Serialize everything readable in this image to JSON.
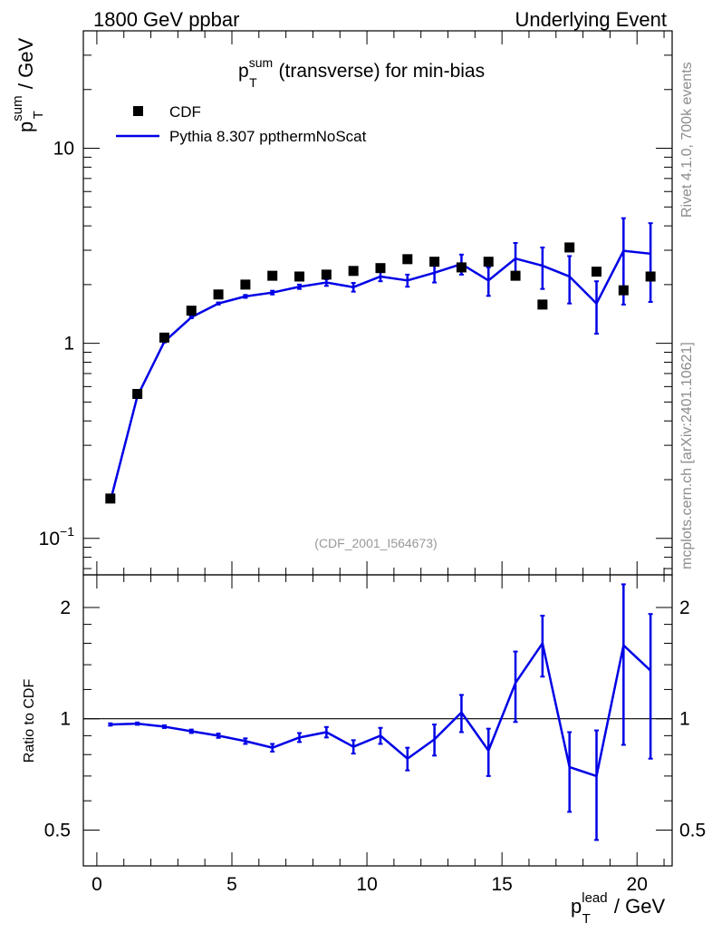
{
  "header": {
    "left": "1800 GeV ppbar",
    "right": "Underlying Event"
  },
  "side_labels": {
    "rivet": "Rivet 4.1.0,  700k events",
    "mcplots": "mcplots.cern.ch [arXiv:2401.10621]"
  },
  "main_plot": {
    "title_main": "p",
    "title_sup": "sum",
    "title_sub": "T",
    "title_rest": " (transverse) for min-bias",
    "ylabel_main": "p",
    "ylabel_sup": "sum",
    "ylabel_sub": "T",
    "ylabel_rest": " / GeV",
    "analysis_tag": "(CDF_2001_I564673)",
    "legend": {
      "data_label": "CDF",
      "mc_label": "Pythia 8.307 ppthermNoScat"
    },
    "yticks": [
      {
        "value": 0.1,
        "label_base": "10",
        "label_exp": "−1"
      },
      {
        "value": 1,
        "label_base": "1",
        "label_exp": ""
      },
      {
        "value": 10,
        "label_base": "10",
        "label_exp": ""
      }
    ]
  },
  "ratio_plot": {
    "ylabel": "Ratio to CDF",
    "yticks": [
      {
        "value": 0.5,
        "label": "0.5"
      },
      {
        "value": 1,
        "label": "1"
      },
      {
        "value": 2,
        "label": "2"
      }
    ]
  },
  "xaxis": {
    "label_main": "p",
    "label_sup": "lead",
    "label_sub": "T",
    "label_rest": " / GeV",
    "ticks": [
      {
        "value": 0,
        "label": "0"
      },
      {
        "value": 5,
        "label": "5"
      },
      {
        "value": 10,
        "label": "10"
      },
      {
        "value": 15,
        "label": "15"
      },
      {
        "value": 20,
        "label": "20"
      }
    ]
  },
  "colors": {
    "data": "#000000",
    "mc": "#0000e6",
    "axis": "#000000",
    "tag": "#999999",
    "side": "#8c8c8c"
  },
  "chart_data": {
    "type": "line",
    "x": [
      0.5,
      1.5,
      2.5,
      3.5,
      4.5,
      5.5,
      6.5,
      7.5,
      8.5,
      9.5,
      10.5,
      11.5,
      12.5,
      13.5,
      14.5,
      15.5,
      16.5,
      17.5,
      18.5,
      19.5,
      20.5
    ],
    "xlim": [
      -0.5,
      21.3
    ],
    "ylim_main": [
      0.065,
      40
    ],
    "ylim_ratio": [
      0.4,
      2.45
    ],
    "series": [
      {
        "name": "CDF",
        "values": [
          0.16,
          0.55,
          1.07,
          1.47,
          1.78,
          2.0,
          2.22,
          2.2,
          2.25,
          2.35,
          2.43,
          2.7,
          2.62,
          2.45,
          2.62,
          2.22,
          1.58,
          3.1,
          2.33,
          1.87,
          2.2
        ]
      },
      {
        "name": "Pythia 8.307 ppthermNoScat",
        "values": [
          0.155,
          0.535,
          1.02,
          1.36,
          1.6,
          1.74,
          1.82,
          1.95,
          2.05,
          1.94,
          2.2,
          2.1,
          2.3,
          2.55,
          2.1,
          2.72,
          2.5,
          2.2,
          1.6,
          2.98,
          2.88
        ],
        "err_lo": [
          0.002,
          0.005,
          0.01,
          0.015,
          0.02,
          0.03,
          0.04,
          0.05,
          0.08,
          0.1,
          0.12,
          0.15,
          0.25,
          0.3,
          0.35,
          0.5,
          0.6,
          0.6,
          0.48,
          1.4,
          1.25
        ],
        "err_hi": [
          0.002,
          0.005,
          0.01,
          0.015,
          0.02,
          0.03,
          0.04,
          0.05,
          0.08,
          0.1,
          0.12,
          0.15,
          0.25,
          0.3,
          0.35,
          0.55,
          0.6,
          0.6,
          0.48,
          1.4,
          1.25
        ]
      },
      {
        "name": "Ratio to CDF",
        "values": [
          0.965,
          0.97,
          0.952,
          0.925,
          0.9,
          0.87,
          0.835,
          0.89,
          0.92,
          0.84,
          0.9,
          0.78,
          0.88,
          1.04,
          0.82,
          1.25,
          1.6,
          0.74,
          0.7,
          1.58,
          1.35
        ],
        "err_lo": [
          0.007,
          0.007,
          0.008,
          0.01,
          0.012,
          0.015,
          0.02,
          0.025,
          0.03,
          0.035,
          0.045,
          0.055,
          0.085,
          0.12,
          0.12,
          0.27,
          0.3,
          0.18,
          0.23,
          0.73,
          0.57
        ],
        "err_hi": [
          0.007,
          0.007,
          0.008,
          0.01,
          0.012,
          0.015,
          0.02,
          0.025,
          0.03,
          0.035,
          0.045,
          0.055,
          0.085,
          0.12,
          0.12,
          0.27,
          0.3,
          0.18,
          0.23,
          0.73,
          0.57
        ]
      }
    ]
  }
}
